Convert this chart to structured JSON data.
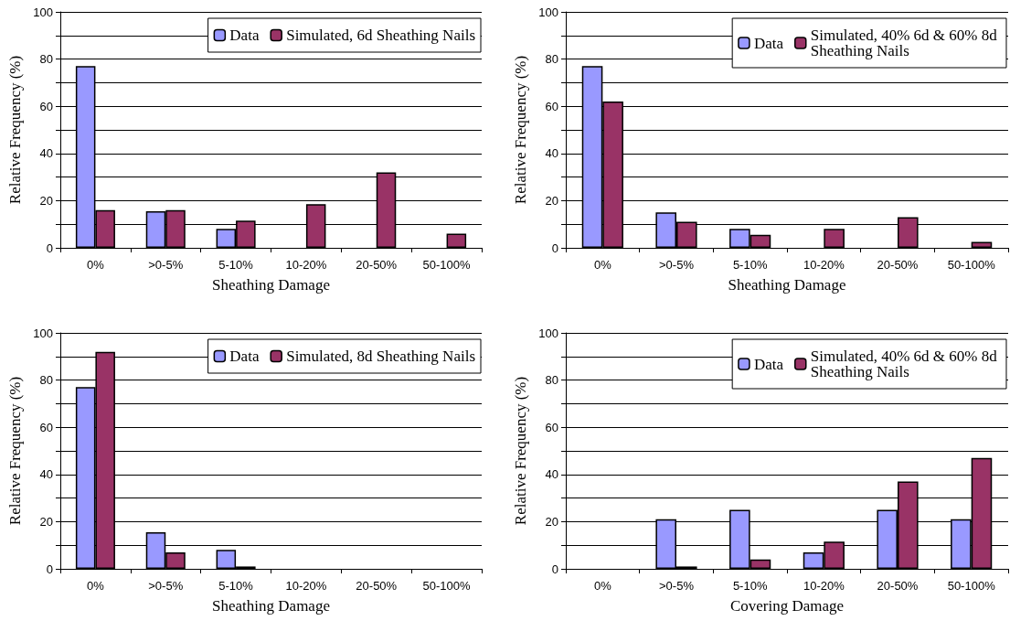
{
  "chart_data": [
    {
      "type": "bar",
      "xlabel": "Sheathing Damage",
      "ylabel": "Relative Frequency (%)",
      "categories": [
        "0%",
        ">0-5%",
        "5-10%",
        "10-20%",
        "20-50%",
        "50-100%"
      ],
      "series": [
        {
          "name": "Data",
          "color": "#9999ff",
          "values": [
            77,
            15.5,
            8,
            0,
            0,
            0
          ]
        },
        {
          "name": "Simulated, 6d Sheathing Nails",
          "color": "#993366",
          "values": [
            16,
            16,
            11.5,
            18.5,
            32,
            6
          ]
        }
      ],
      "ylim": [
        0,
        100
      ],
      "yticks": [
        0,
        {
          "value": 10,
          "label": null
        },
        20,
        {
          "value": 30,
          "label": null
        },
        40,
        {
          "value": 50,
          "label": null
        },
        60,
        {
          "value": 70,
          "label": null
        },
        80,
        {
          "value": 90,
          "label": null
        },
        100
      ],
      "grid": "y",
      "legend": "top right"
    },
    {
      "type": "bar",
      "xlabel": "Sheathing Damage",
      "ylabel": "Relative Frequency (%)",
      "categories": [
        "0%",
        ">0-5%",
        "5-10%",
        "10-20%",
        "20-50%",
        "50-100%"
      ],
      "series": [
        {
          "name": "Data",
          "color": "#9999ff",
          "values": [
            77,
            15,
            8,
            0,
            0,
            0
          ]
        },
        {
          "name": "Simulated, 40% 6d & 60% 8d Sheathing Nails",
          "color": "#993366",
          "values": [
            62,
            11,
            5.5,
            8,
            13,
            2.5
          ]
        }
      ],
      "ylim": [
        0,
        100
      ],
      "yticks": [
        0,
        {
          "value": 10,
          "label": null
        },
        20,
        {
          "value": 30,
          "label": null
        },
        40,
        {
          "value": 50,
          "label": null
        },
        60,
        {
          "value": 70,
          "label": null
        },
        80,
        {
          "value": 90,
          "label": null
        },
        100
      ],
      "grid": "y",
      "legend": "top right"
    },
    {
      "type": "bar",
      "xlabel": "Sheathing Damage",
      "ylabel": "Relative Frequency (%)",
      "categories": [
        "0%",
        ">0-5%",
        "5-10%",
        "10-20%",
        "20-50%",
        "50-100%"
      ],
      "series": [
        {
          "name": "Data",
          "color": "#9999ff",
          "values": [
            77,
            15.5,
            8,
            0,
            0,
            0
          ]
        },
        {
          "name": "Simulated, 8d Sheathing Nails",
          "color": "#993366",
          "values": [
            92,
            7,
            1,
            0,
            0,
            0
          ]
        }
      ],
      "ylim": [
        0,
        100
      ],
      "yticks": [
        0,
        {
          "value": 10,
          "label": null
        },
        20,
        {
          "value": 30,
          "label": null
        },
        40,
        {
          "value": 50,
          "label": null
        },
        60,
        {
          "value": 70,
          "label": null
        },
        80,
        {
          "value": 90,
          "label": null
        },
        100
      ],
      "grid": "y",
      "legend": "top right"
    },
    {
      "type": "bar",
      "xlabel": "Covering Damage",
      "ylabel": "Relative Frequency (%)",
      "categories": [
        "0%",
        ">0-5%",
        "5-10%",
        "10-20%",
        "20-50%",
        "50-100%"
      ],
      "series": [
        {
          "name": "Data",
          "color": "#9999ff",
          "values": [
            0,
            21,
            25,
            7,
            25,
            21
          ]
        },
        {
          "name": "Simulated, 40% 6d & 60% 8d Sheathing Nails",
          "color": "#993366",
          "values": [
            0,
            1,
            4,
            11.5,
            37,
            47
          ]
        }
      ],
      "ylim": [
        0,
        100
      ],
      "yticks": [
        0,
        {
          "value": 10,
          "label": null
        },
        20,
        {
          "value": 30,
          "label": null
        },
        40,
        {
          "value": 50,
          "label": null
        },
        60,
        {
          "value": 70,
          "label": null
        },
        80,
        {
          "value": 90,
          "label": null
        },
        100
      ],
      "grid": "y",
      "legend": "top right"
    }
  ]
}
